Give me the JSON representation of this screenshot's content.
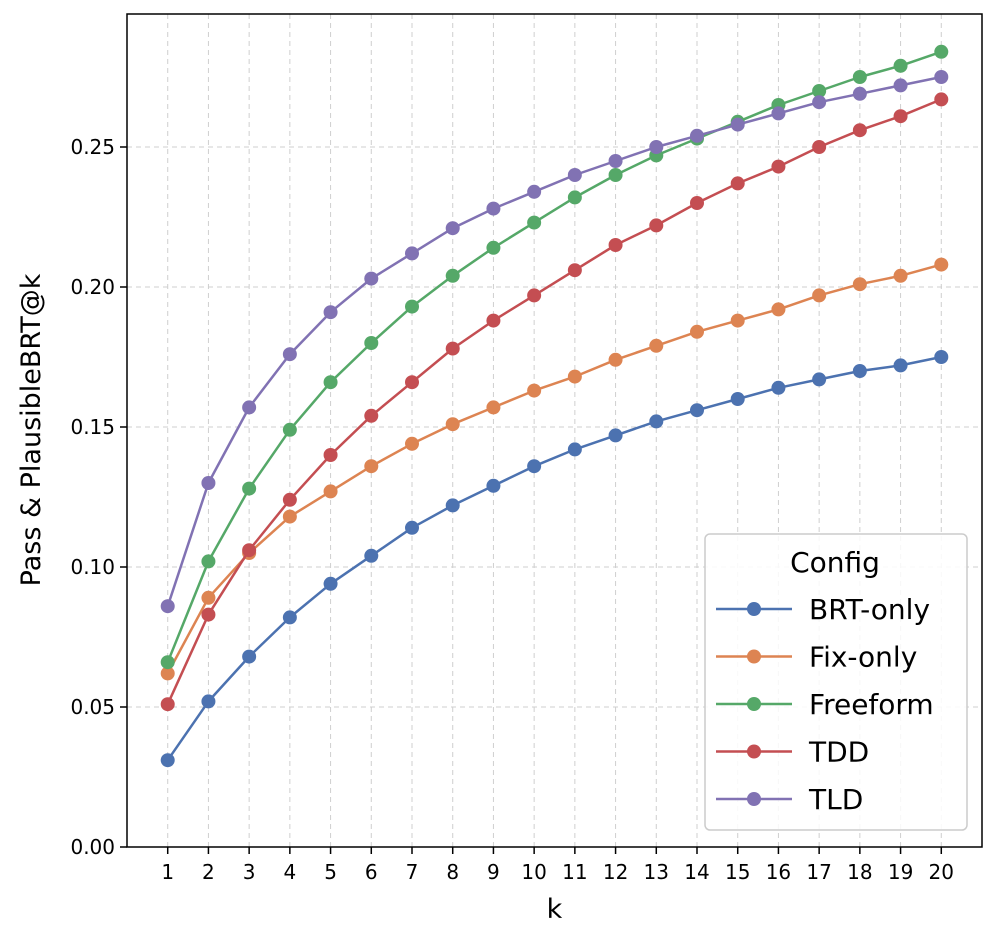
{
  "chart_data": {
    "type": "line",
    "xlabel": "k",
    "ylabel": "Pass & PlausibleBRT@k",
    "x": [
      1,
      2,
      3,
      4,
      5,
      6,
      7,
      8,
      9,
      10,
      11,
      12,
      13,
      14,
      15,
      16,
      17,
      18,
      19,
      20
    ],
    "x_tick_labels": [
      "1",
      "2",
      "3",
      "4",
      "5",
      "6",
      "7",
      "8",
      "9",
      "10",
      "11",
      "12",
      "13",
      "14",
      "15",
      "16",
      "17",
      "18",
      "19",
      "20"
    ],
    "xlim": [
      0,
      21
    ],
    "ylim": [
      0,
      0.2975
    ],
    "y_ticks": [
      0.0,
      0.05,
      0.1,
      0.15,
      0.2,
      0.25
    ],
    "y_tick_labels": [
      "0.00",
      "0.05",
      "0.10",
      "0.15",
      "0.20",
      "0.25"
    ],
    "grid": true,
    "legend": {
      "title": "Config",
      "placement": "lower-right"
    },
    "series": [
      {
        "name": "BRT-only",
        "color": "#4c72b0",
        "values": [
          0.031,
          0.052,
          0.068,
          0.082,
          0.094,
          0.104,
          0.114,
          0.122,
          0.129,
          0.136,
          0.142,
          0.147,
          0.152,
          0.156,
          0.16,
          0.164,
          0.167,
          0.17,
          0.172,
          0.175
        ]
      },
      {
        "name": "Fix-only",
        "color": "#dd8452",
        "values": [
          0.062,
          0.089,
          0.105,
          0.118,
          0.127,
          0.136,
          0.144,
          0.151,
          0.157,
          0.163,
          0.168,
          0.174,
          0.179,
          0.184,
          0.188,
          0.192,
          0.197,
          0.201,
          0.204,
          0.208
        ]
      },
      {
        "name": "Freeform",
        "color": "#55a868",
        "values": [
          0.066,
          0.102,
          0.128,
          0.149,
          0.166,
          0.18,
          0.193,
          0.204,
          0.214,
          0.223,
          0.232,
          0.24,
          0.247,
          0.253,
          0.259,
          0.265,
          0.27,
          0.275,
          0.279,
          0.284
        ]
      },
      {
        "name": "TDD",
        "color": "#c44e52",
        "values": [
          0.051,
          0.083,
          0.106,
          0.124,
          0.14,
          0.154,
          0.166,
          0.178,
          0.188,
          0.197,
          0.206,
          0.215,
          0.222,
          0.23,
          0.237,
          0.243,
          0.25,
          0.256,
          0.261,
          0.267
        ]
      },
      {
        "name": "TLD",
        "color": "#8172b3",
        "values": [
          0.086,
          0.13,
          0.157,
          0.176,
          0.191,
          0.203,
          0.212,
          0.221,
          0.228,
          0.234,
          0.24,
          0.245,
          0.25,
          0.254,
          0.258,
          0.262,
          0.266,
          0.269,
          0.272,
          0.275
        ]
      }
    ]
  }
}
